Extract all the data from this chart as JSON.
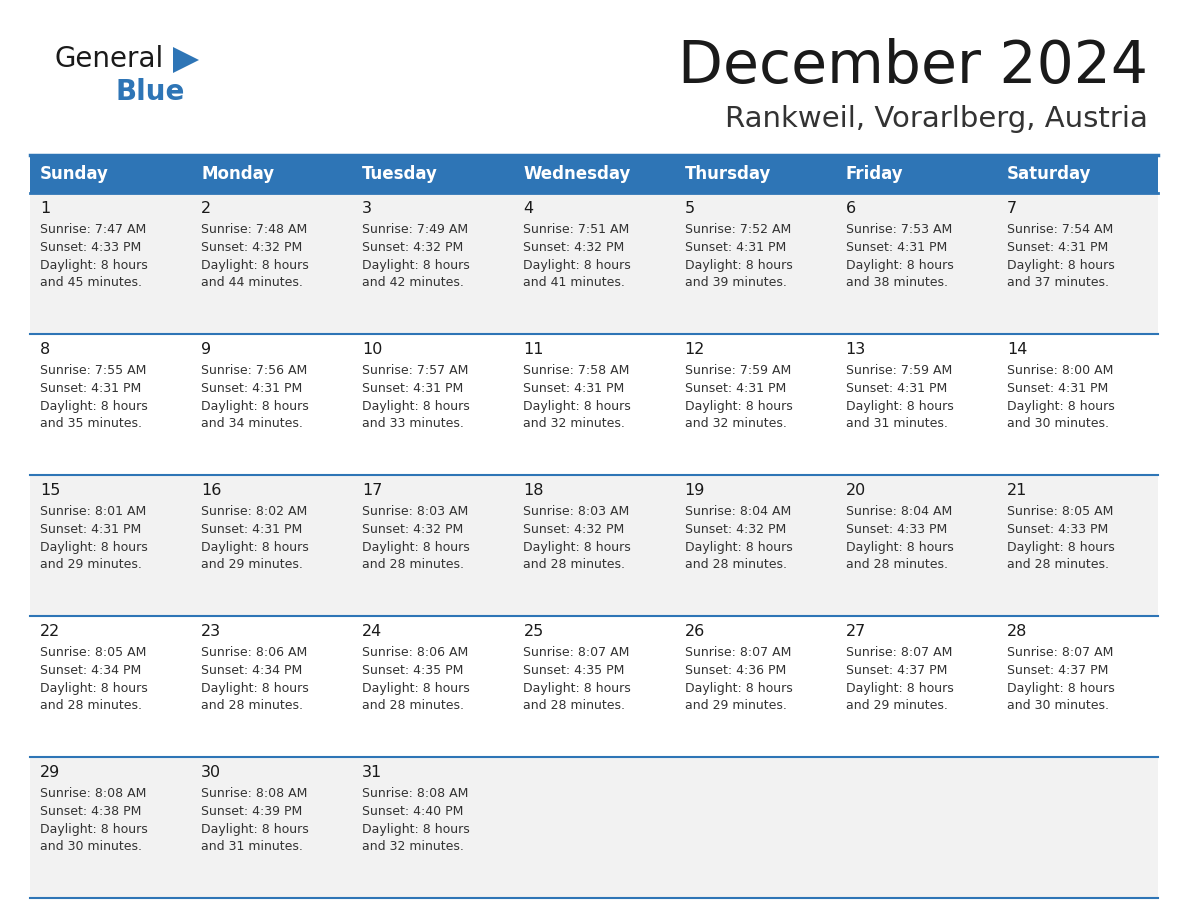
{
  "title": "December 2024",
  "subtitle": "Rankweil, Vorarlberg, Austria",
  "header_bg_color": "#2E75B6",
  "header_text_color": "#FFFFFF",
  "cell_bg_color_odd": "#F2F2F2",
  "cell_bg_color_even": "#FFFFFF",
  "day_names": [
    "Sunday",
    "Monday",
    "Tuesday",
    "Wednesday",
    "Thursday",
    "Friday",
    "Saturday"
  ],
  "title_color": "#1a1a1a",
  "subtitle_color": "#333333",
  "cell_text_color": "#333333",
  "day_num_color": "#1a1a1a",
  "grid_color": "#2E75B6",
  "logo_general_color": "#1a1a1a",
  "logo_blue_color": "#2E75B6",
  "logo_triangle_color": "#2E75B6",
  "days": [
    {
      "day": 1,
      "col": 0,
      "row": 0,
      "sunrise": "7:47 AM",
      "sunset": "4:33 PM",
      "daylight": "8 hours and 45 minutes."
    },
    {
      "day": 2,
      "col": 1,
      "row": 0,
      "sunrise": "7:48 AM",
      "sunset": "4:32 PM",
      "daylight": "8 hours and 44 minutes."
    },
    {
      "day": 3,
      "col": 2,
      "row": 0,
      "sunrise": "7:49 AM",
      "sunset": "4:32 PM",
      "daylight": "8 hours and 42 minutes."
    },
    {
      "day": 4,
      "col": 3,
      "row": 0,
      "sunrise": "7:51 AM",
      "sunset": "4:32 PM",
      "daylight": "8 hours and 41 minutes."
    },
    {
      "day": 5,
      "col": 4,
      "row": 0,
      "sunrise": "7:52 AM",
      "sunset": "4:31 PM",
      "daylight": "8 hours and 39 minutes."
    },
    {
      "day": 6,
      "col": 5,
      "row": 0,
      "sunrise": "7:53 AM",
      "sunset": "4:31 PM",
      "daylight": "8 hours and 38 minutes."
    },
    {
      "day": 7,
      "col": 6,
      "row": 0,
      "sunrise": "7:54 AM",
      "sunset": "4:31 PM",
      "daylight": "8 hours and 37 minutes."
    },
    {
      "day": 8,
      "col": 0,
      "row": 1,
      "sunrise": "7:55 AM",
      "sunset": "4:31 PM",
      "daylight": "8 hours and 35 minutes."
    },
    {
      "day": 9,
      "col": 1,
      "row": 1,
      "sunrise": "7:56 AM",
      "sunset": "4:31 PM",
      "daylight": "8 hours and 34 minutes."
    },
    {
      "day": 10,
      "col": 2,
      "row": 1,
      "sunrise": "7:57 AM",
      "sunset": "4:31 PM",
      "daylight": "8 hours and 33 minutes."
    },
    {
      "day": 11,
      "col": 3,
      "row": 1,
      "sunrise": "7:58 AM",
      "sunset": "4:31 PM",
      "daylight": "8 hours and 32 minutes."
    },
    {
      "day": 12,
      "col": 4,
      "row": 1,
      "sunrise": "7:59 AM",
      "sunset": "4:31 PM",
      "daylight": "8 hours and 32 minutes."
    },
    {
      "day": 13,
      "col": 5,
      "row": 1,
      "sunrise": "7:59 AM",
      "sunset": "4:31 PM",
      "daylight": "8 hours and 31 minutes."
    },
    {
      "day": 14,
      "col": 6,
      "row": 1,
      "sunrise": "8:00 AM",
      "sunset": "4:31 PM",
      "daylight": "8 hours and 30 minutes."
    },
    {
      "day": 15,
      "col": 0,
      "row": 2,
      "sunrise": "8:01 AM",
      "sunset": "4:31 PM",
      "daylight": "8 hours and 29 minutes."
    },
    {
      "day": 16,
      "col": 1,
      "row": 2,
      "sunrise": "8:02 AM",
      "sunset": "4:31 PM",
      "daylight": "8 hours and 29 minutes."
    },
    {
      "day": 17,
      "col": 2,
      "row": 2,
      "sunrise": "8:03 AM",
      "sunset": "4:32 PM",
      "daylight": "8 hours and 28 minutes."
    },
    {
      "day": 18,
      "col": 3,
      "row": 2,
      "sunrise": "8:03 AM",
      "sunset": "4:32 PM",
      "daylight": "8 hours and 28 minutes."
    },
    {
      "day": 19,
      "col": 4,
      "row": 2,
      "sunrise": "8:04 AM",
      "sunset": "4:32 PM",
      "daylight": "8 hours and 28 minutes."
    },
    {
      "day": 20,
      "col": 5,
      "row": 2,
      "sunrise": "8:04 AM",
      "sunset": "4:33 PM",
      "daylight": "8 hours and 28 minutes."
    },
    {
      "day": 21,
      "col": 6,
      "row": 2,
      "sunrise": "8:05 AM",
      "sunset": "4:33 PM",
      "daylight": "8 hours and 28 minutes."
    },
    {
      "day": 22,
      "col": 0,
      "row": 3,
      "sunrise": "8:05 AM",
      "sunset": "4:34 PM",
      "daylight": "8 hours and 28 minutes."
    },
    {
      "day": 23,
      "col": 1,
      "row": 3,
      "sunrise": "8:06 AM",
      "sunset": "4:34 PM",
      "daylight": "8 hours and 28 minutes."
    },
    {
      "day": 24,
      "col": 2,
      "row": 3,
      "sunrise": "8:06 AM",
      "sunset": "4:35 PM",
      "daylight": "8 hours and 28 minutes."
    },
    {
      "day": 25,
      "col": 3,
      "row": 3,
      "sunrise": "8:07 AM",
      "sunset": "4:35 PM",
      "daylight": "8 hours and 28 minutes."
    },
    {
      "day": 26,
      "col": 4,
      "row": 3,
      "sunrise": "8:07 AM",
      "sunset": "4:36 PM",
      "daylight": "8 hours and 29 minutes."
    },
    {
      "day": 27,
      "col": 5,
      "row": 3,
      "sunrise": "8:07 AM",
      "sunset": "4:37 PM",
      "daylight": "8 hours and 29 minutes."
    },
    {
      "day": 28,
      "col": 6,
      "row": 3,
      "sunrise": "8:07 AM",
      "sunset": "4:37 PM",
      "daylight": "8 hours and 30 minutes."
    },
    {
      "day": 29,
      "col": 0,
      "row": 4,
      "sunrise": "8:08 AM",
      "sunset": "4:38 PM",
      "daylight": "8 hours and 30 minutes."
    },
    {
      "day": 30,
      "col": 1,
      "row": 4,
      "sunrise": "8:08 AM",
      "sunset": "4:39 PM",
      "daylight": "8 hours and 31 minutes."
    },
    {
      "day": 31,
      "col": 2,
      "row": 4,
      "sunrise": "8:08 AM",
      "sunset": "4:40 PM",
      "daylight": "8 hours and 32 minutes."
    }
  ]
}
